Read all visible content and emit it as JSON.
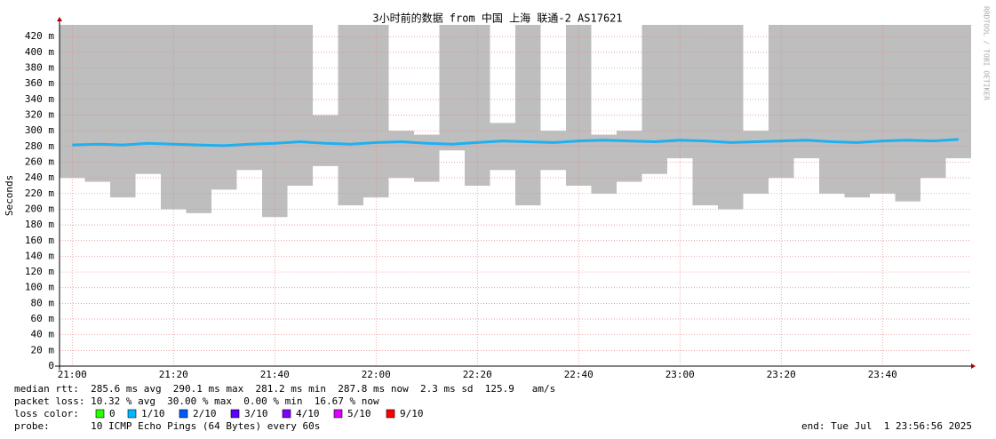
{
  "chart_data": {
    "type": "smokeping",
    "title": "3小时前的数据 from 中国 上海 联通-2 AS17621",
    "y_label": "Seconds",
    "watermark": "RRDTOOL / TOBI OETIKER",
    "categories": [
      "21:00",
      null,
      null,
      null,
      "21:20",
      null,
      null,
      null,
      "21:40",
      null,
      null,
      null,
      "22:00",
      null,
      null,
      null,
      "22:20",
      null,
      null,
      null,
      "22:40",
      null,
      null,
      null,
      "23:00",
      null,
      null,
      null,
      "23:20",
      null,
      null,
      null,
      "23:40",
      null,
      null,
      null
    ],
    "median": {
      "color": "#20b0f0",
      "values": [
        282,
        283,
        282,
        284,
        283,
        282,
        281,
        283,
        284,
        286,
        284,
        283,
        285,
        286,
        284,
        283,
        285,
        287,
        286,
        285,
        287,
        288,
        287,
        286,
        288,
        287,
        285,
        286,
        287,
        288,
        286,
        285,
        287,
        288,
        287,
        289
      ]
    },
    "smoke": {
      "color": "#a8a8a8",
      "low": [
        240,
        235,
        215,
        245,
        200,
        195,
        225,
        250,
        190,
        230,
        255,
        205,
        215,
        240,
        235,
        275,
        230,
        250,
        205,
        250,
        230,
        220,
        235,
        245,
        265,
        205,
        200,
        220,
        240,
        265,
        220,
        215,
        220,
        210,
        240,
        265
      ],
      "high": [
        435,
        435,
        435,
        435,
        435,
        435,
        435,
        435,
        435,
        435,
        320,
        435,
        435,
        300,
        295,
        435,
        435,
        310,
        435,
        300,
        435,
        295,
        300,
        435,
        435,
        435,
        435,
        300,
        435,
        435,
        435,
        435,
        435,
        435,
        435,
        435
      ]
    },
    "ylim": [
      0,
      435
    ],
    "yticks": [
      0,
      {
        "value": 20,
        "label": "20 m"
      },
      {
        "value": 40,
        "label": "40 m"
      },
      {
        "value": 60,
        "label": "60 m"
      },
      {
        "value": 80,
        "label": "80 m"
      },
      {
        "value": 100,
        "label": "100 m"
      },
      {
        "value": 120,
        "label": "120 m"
      },
      {
        "value": 140,
        "label": "140 m"
      },
      {
        "value": 160,
        "label": "160 m"
      },
      {
        "value": 180,
        "label": "180 m"
      },
      {
        "value": 200,
        "label": "200 m"
      },
      {
        "value": 220,
        "label": "220 m"
      },
      {
        "value": 240,
        "label": "240 m"
      },
      {
        "value": 260,
        "label": "260 m"
      },
      {
        "value": 280,
        "label": "280 m"
      },
      {
        "value": 300,
        "label": "300 m"
      },
      {
        "value": 320,
        "label": "320 m"
      },
      {
        "value": 340,
        "label": "340 m"
      },
      {
        "value": 360,
        "label": "360 m"
      },
      {
        "value": 380,
        "label": "380 m"
      },
      {
        "value": 400,
        "label": "400 m"
      },
      {
        "value": 420,
        "label": "420 m"
      }
    ],
    "grid": true,
    "stats_lines": [
      "median rtt:  285.6 ms avg  290.1 ms max  281.2 ms min  287.8 ms now  2.3 ms sd  125.9   am/s",
      "packet loss: 10.32 % avg  30.00 % max  0.00 % min  16.67 % now"
    ],
    "loss_label": "loss color:",
    "loss_colors": [
      {
        "name": "0",
        "color": "#26ff00"
      },
      {
        "name": "1/10",
        "color": "#00b8ff"
      },
      {
        "name": "2/10",
        "color": "#0059ff"
      },
      {
        "name": "3/10",
        "color": "#5e00ff"
      },
      {
        "name": "4/10",
        "color": "#7e00ff"
      },
      {
        "name": "5/10",
        "color": "#dd00ff"
      },
      {
        "name": "9/10",
        "color": "#ff0000"
      }
    ],
    "probe": "probe:       10 ICMP Echo Pings (64 Bytes) every 60s",
    "end": "end: Tue Jul  1 23:56:56 2025"
  }
}
